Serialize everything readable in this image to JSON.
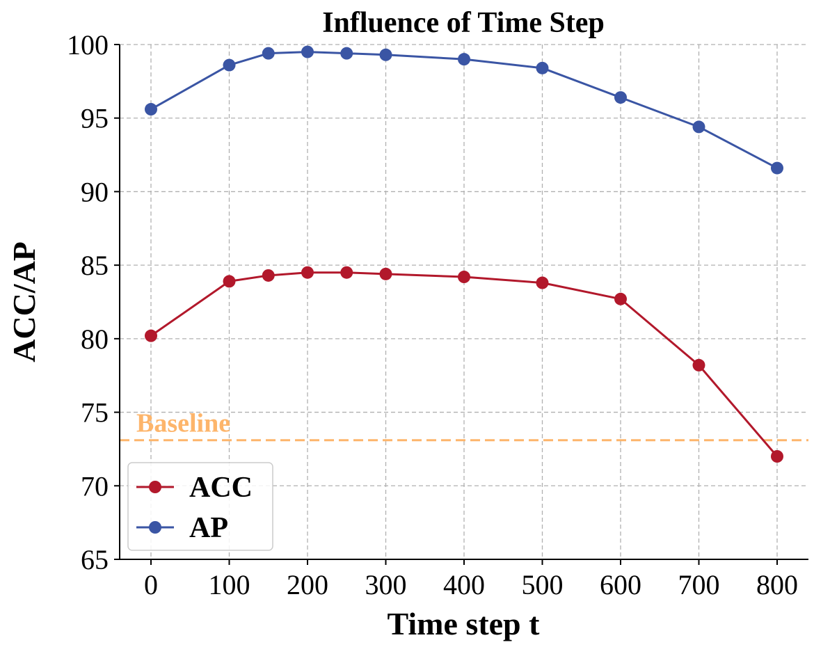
{
  "chart_data": {
    "type": "line",
    "title": "Influence of Time Step",
    "xlabel": "Time step t",
    "ylabel": "ACC/AP",
    "x": [
      0,
      100,
      150,
      200,
      250,
      300,
      400,
      500,
      600,
      700,
      800
    ],
    "xticks": [
      0,
      100,
      200,
      300,
      400,
      500,
      600,
      700,
      800
    ],
    "xtick_labels": [
      "0",
      "100",
      "200",
      "300",
      "400",
      "500",
      "600",
      "700",
      "800"
    ],
    "yticks": [
      65,
      70,
      75,
      80,
      85,
      90,
      95,
      100
    ],
    "ytick_labels": [
      "65",
      "70",
      "75",
      "80",
      "85",
      "90",
      "95",
      "100"
    ],
    "xlim": [
      -40,
      840
    ],
    "ylim": [
      65,
      100
    ],
    "grid": true,
    "legend_location": "bottom-left",
    "series": [
      {
        "name": "ACC",
        "color": "#b2182b",
        "values": [
          80.2,
          83.9,
          84.3,
          84.5,
          84.5,
          84.4,
          84.2,
          83.8,
          82.7,
          78.2,
          72.0
        ]
      },
      {
        "name": "AP",
        "color": "#3a55a4",
        "values": [
          95.6,
          98.6,
          99.4,
          99.5,
          99.4,
          99.3,
          99.0,
          98.4,
          96.4,
          94.4,
          91.6
        ]
      }
    ],
    "baseline": {
      "label": "Baseline",
      "value": 73.1,
      "color": "#fdb56b"
    }
  }
}
